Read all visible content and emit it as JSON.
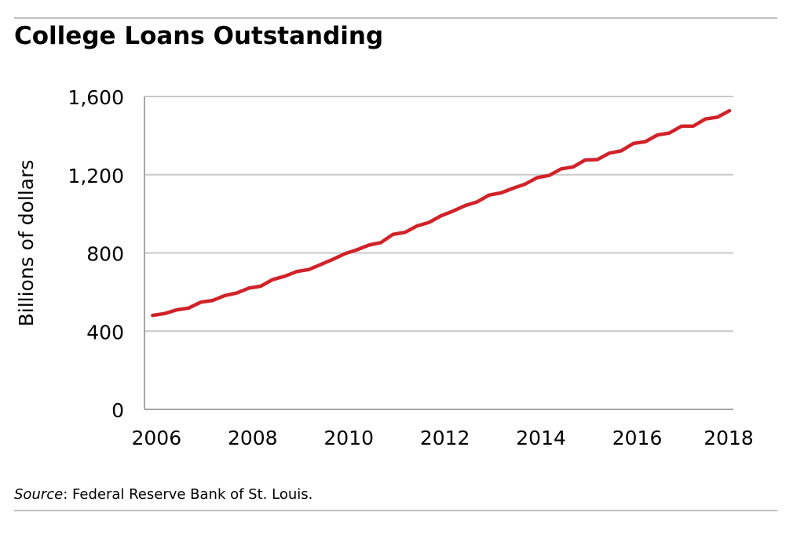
{
  "header": {
    "title": "College Loans Outstanding"
  },
  "footer": {
    "source_label": "Source",
    "source_text": ": Federal Reserve Bank of St. Louis."
  },
  "colors": {
    "series": "#d12229",
    "grid": "#c8c8c8",
    "axis": "#a6a6a6",
    "rule": "#bfbfbf"
  },
  "chart_data": {
    "type": "line",
    "title": "College Loans Outstanding",
    "xlabel": "",
    "ylabel": "Billions of dollars",
    "xlim": [
      2005.75,
      2018.0
    ],
    "ylim": [
      0,
      1600
    ],
    "yticks": [
      0,
      400,
      800,
      1200,
      1600
    ],
    "ytick_labels": [
      "0",
      "400",
      "800",
      "1,200",
      "1,600"
    ],
    "xticks": [
      2006,
      2008,
      2010,
      2012,
      2014,
      2016,
      2018
    ],
    "xtick_labels": [
      "2006",
      "2008",
      "2010",
      "2012",
      "2014",
      "2016",
      "2018"
    ],
    "grid": true,
    "legend": "none",
    "series": [
      {
        "x": [
          2005.92,
          2006.17,
          2006.42,
          2006.67,
          2006.92,
          2007.17,
          2007.42,
          2007.67,
          2007.92,
          2008.17,
          2008.42,
          2008.67,
          2008.92,
          2009.17,
          2009.42,
          2009.67,
          2009.92,
          2010.17,
          2010.42,
          2010.67,
          2010.92,
          2011.17,
          2011.42,
          2011.67,
          2011.92,
          2012.17,
          2012.42,
          2012.67,
          2012.92,
          2013.17,
          2013.42,
          2013.67,
          2013.92,
          2014.17,
          2014.42,
          2014.67,
          2014.92,
          2015.17,
          2015.42,
          2015.67,
          2015.92,
          2016.17,
          2016.42,
          2016.67,
          2016.92,
          2017.17,
          2017.42,
          2017.67,
          2017.92
        ],
        "values": [
          481,
          490,
          509,
          518,
          548,
          557,
          582,
          595,
          620,
          630,
          664,
          681,
          705,
          715,
          741,
          767,
          796,
          816,
          840,
          853,
          895,
          905,
          938,
          956,
          990,
          1014,
          1042,
          1061,
          1096,
          1107,
          1131,
          1152,
          1185,
          1196,
          1230,
          1240,
          1275,
          1277,
          1310,
          1322,
          1360,
          1369,
          1403,
          1413,
          1448,
          1449,
          1485,
          1494,
          1527
        ]
      }
    ]
  }
}
